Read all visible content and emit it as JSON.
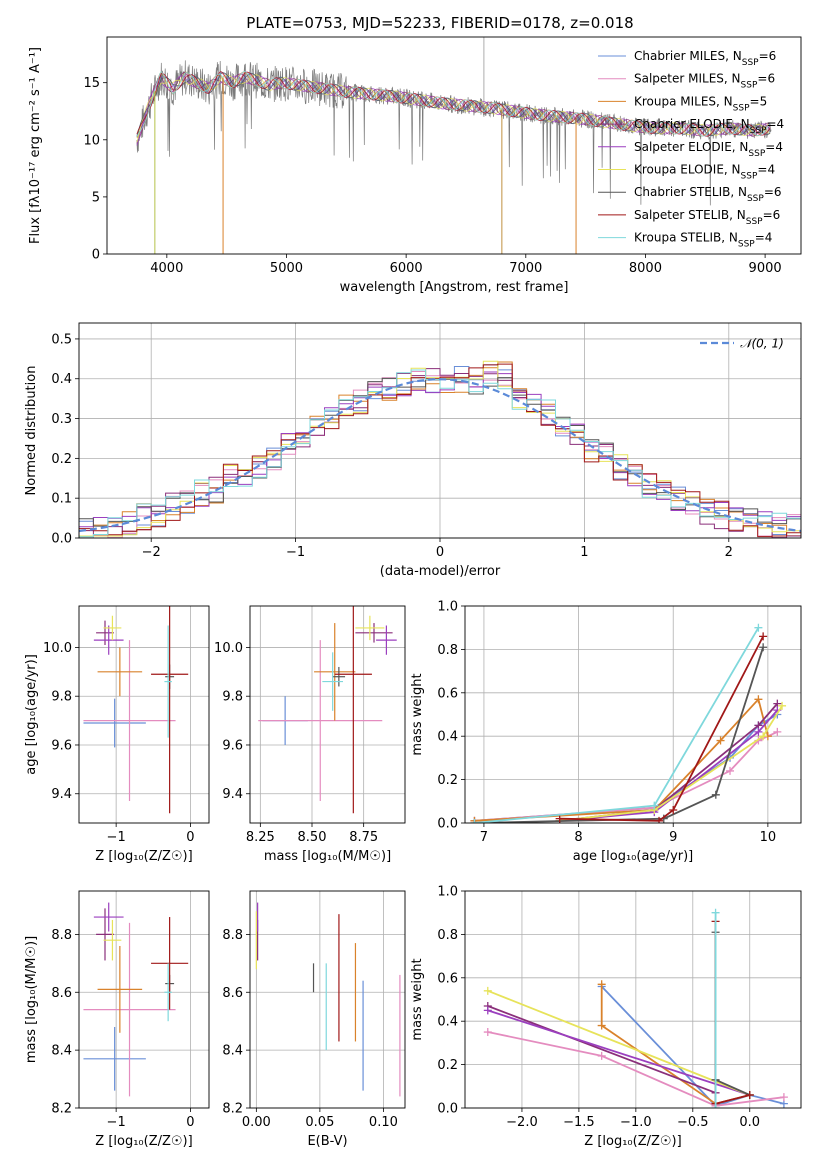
{
  "figure_title": "PLATE=0753, MJD=52233, FIBERID=0178, z=0.018",
  "colors": {
    "Chabrier MILES": "#6a8fd8",
    "Salpeter MILES": "#e48cbf",
    "Kroupa MILES": "#d9822b",
    "Chabrier ELODIE": "#8a2f7a",
    "Salpeter ELODIE": "#9b3fbf",
    "Kroupa ELODIE": "#e7e35a",
    "Chabrier STELIB": "#555555",
    "Salpeter STELIB": "#a01818",
    "Kroupa STELIB": "#7fd8dc"
  },
  "chart_data": [
    {
      "type": "line",
      "xlabel": "wavelength [Angstrom, rest frame]",
      "ylabel": "Flux [fλ10⁻¹⁷ erg cm⁻² s⁻¹ A⁻¹]",
      "xlim": [
        3500,
        9300
      ],
      "ylim": [
        0,
        19
      ],
      "xticks": [
        4000,
        5000,
        6000,
        7000,
        8000,
        9000
      ],
      "yticks": [
        0,
        5,
        10,
        15
      ],
      "grid": false,
      "legend_position": "top-right",
      "legend": [
        "Chabrier MILES, N_SSP=6",
        "Salpeter MILES, N_SSP=6",
        "Kroupa MILES, N_SSP=5",
        "Chabrier ELODIE, N_SSP=4",
        "Salpeter ELODIE, N_SSP=4",
        "Kroupa ELODIE, N_SSP=4",
        "Chabrier STELIB, N_SSP=6",
        "Salpeter STELIB, N_SSP=6",
        "Kroupa STELIB, N_SSP=4"
      ],
      "spectrum_approx": {
        "x": [
          3750,
          3850,
          3950,
          4050,
          4150,
          4250,
          4350,
          4450,
          4550,
          4650,
          4750,
          4850,
          4950,
          5100,
          5300,
          5500,
          5700,
          5900,
          6100,
          6300,
          6500,
          6700,
          6900,
          7100,
          7300,
          7500,
          7700,
          7900,
          8100,
          8300,
          8500,
          8700,
          8900,
          9050
        ],
        "y": [
          10,
          13,
          15.5,
          14.5,
          15.5,
          15,
          14.5,
          15.5,
          15,
          15.5,
          15.2,
          14.8,
          15,
          14.8,
          14.5,
          14.2,
          14,
          13.8,
          13.5,
          13.2,
          13,
          12.8,
          12.5,
          12.2,
          12,
          11.8,
          11.5,
          11.2,
          11,
          11,
          10.8,
          11,
          10.8,
          11
        ]
      }
    },
    {
      "type": "line",
      "xlabel": "(data-model)/error",
      "ylabel": "Normed distribution",
      "xlim": [
        -2.5,
        2.5
      ],
      "ylim": [
        0,
        0.54
      ],
      "xticks": [
        -2,
        -1,
        0,
        1,
        2
      ],
      "yticks": [
        0.0,
        0.1,
        0.2,
        0.3,
        0.4,
        0.5
      ],
      "grid": true,
      "legend_position": "top-right",
      "legend": [
        "𝒩(0, 1)"
      ],
      "histogram_approx": {
        "bin_centers": [
          -2.4,
          -2.2,
          -2.0,
          -1.8,
          -1.6,
          -1.4,
          -1.2,
          -1.0,
          -0.8,
          -0.6,
          -0.4,
          -0.2,
          0.0,
          0.2,
          0.35,
          0.5,
          0.7,
          0.9,
          1.1,
          1.3,
          1.5,
          1.7,
          1.9,
          2.1,
          2.3
        ],
        "values": [
          0.02,
          0.03,
          0.06,
          0.09,
          0.13,
          0.18,
          0.2,
          0.26,
          0.3,
          0.35,
          0.38,
          0.4,
          0.4,
          0.4,
          0.45,
          0.36,
          0.32,
          0.27,
          0.2,
          0.16,
          0.11,
          0.08,
          0.05,
          0.04,
          0.03
        ]
      }
    },
    {
      "type": "scatter",
      "xlabel": "Z [log₁₀(Z/Z☉)]",
      "ylabel": "age  [log₁₀(age/yr)]",
      "xlim": [
        -1.5,
        0.25
      ],
      "ylim": [
        9.28,
        10.17
      ],
      "xticks": [
        -1,
        0
      ],
      "yticks": [
        9.4,
        9.6,
        9.8,
        10.0
      ],
      "grid": true,
      "points": [
        {
          "series": "Chabrier MILES",
          "x": -1.02,
          "y": 9.69,
          "xerr": 0.42,
          "yerr": 0.1
        },
        {
          "series": "Salpeter MILES",
          "x": -0.82,
          "y": 9.7,
          "xerr": 0.62,
          "yerr": 0.33
        },
        {
          "series": "Kroupa MILES",
          "x": -0.95,
          "y": 9.9,
          "xerr": 0.3,
          "yerr": 0.1
        },
        {
          "series": "Chabrier ELODIE",
          "x": -1.15,
          "y": 10.06,
          "xerr": 0.12,
          "yerr": 0.05
        },
        {
          "series": "Salpeter ELODIE",
          "x": -1.1,
          "y": 10.03,
          "xerr": 0.2,
          "yerr": 0.06
        },
        {
          "series": "Kroupa ELODIE",
          "x": -1.05,
          "y": 10.08,
          "xerr": 0.12,
          "yerr": 0.05
        },
        {
          "series": "Chabrier STELIB",
          "x": -0.28,
          "y": 9.88,
          "xerr": 0.06,
          "yerr": 0.05
        },
        {
          "series": "Salpeter STELIB",
          "x": -0.28,
          "y": 9.89,
          "xerr": 0.25,
          "yerr": 0.57
        },
        {
          "series": "Kroupa STELIB",
          "x": -0.3,
          "y": 9.86,
          "xerr": 0.05,
          "yerr": 0.23
        }
      ]
    },
    {
      "type": "scatter",
      "xlabel": "mass [log₁₀(M/M☉)]",
      "ylabel": "",
      "xlim": [
        8.2,
        8.95
      ],
      "ylim": [
        9.28,
        10.17
      ],
      "xticks": [
        8.25,
        8.5,
        8.75
      ],
      "tick_labels": [
        "8.25",
        "8.50",
        "8.75"
      ],
      "yticks": [
        9.4,
        9.6,
        9.8,
        10.0
      ],
      "grid": true,
      "points": [
        {
          "series": "Chabrier MILES",
          "x": 8.37,
          "y": 9.7,
          "xerr": 0.11,
          "yerr": 0.1
        },
        {
          "series": "Salpeter MILES",
          "x": 8.54,
          "y": 9.7,
          "xerr": 0.3,
          "yerr": 0.33
        },
        {
          "series": "Kroupa MILES",
          "x": 8.61,
          "y": 9.9,
          "xerr": 0.1,
          "yerr": 0.2
        },
        {
          "series": "Chabrier ELODIE",
          "x": 8.8,
          "y": 10.06,
          "xerr": 0.09,
          "yerr": 0.04
        },
        {
          "series": "Salpeter ELODIE",
          "x": 8.86,
          "y": 10.03,
          "xerr": 0.05,
          "yerr": 0.06
        },
        {
          "series": "Kroupa ELODIE",
          "x": 8.78,
          "y": 10.08,
          "xerr": 0.07,
          "yerr": 0.05
        },
        {
          "series": "Chabrier STELIB",
          "x": 8.63,
          "y": 9.88,
          "xerr": 0.03,
          "yerr": 0.04
        },
        {
          "series": "Salpeter STELIB",
          "x": 8.7,
          "y": 9.89,
          "xerr": 0.09,
          "yerr": 0.57
        },
        {
          "series": "Kroupa STELIB",
          "x": 8.6,
          "y": 9.86,
          "xerr": 0.05,
          "yerr": 0.12
        }
      ]
    },
    {
      "type": "line",
      "xlabel": "age  [log₁₀(age/yr)]",
      "ylabel": "mass weight",
      "xlim": [
        6.8,
        10.35
      ],
      "ylim": [
        0,
        1.0
      ],
      "xticks": [
        7,
        8,
        9,
        10
      ],
      "yticks": [
        0.0,
        0.2,
        0.4,
        0.6,
        0.8,
        1.0
      ],
      "grid": true,
      "series": [
        {
          "series": "Chabrier MILES",
          "x": [
            6.9,
            8.8,
            9.6,
            9.9,
            10.1
          ],
          "y": [
            0.01,
            0.07,
            0.3,
            0.45,
            0.5
          ]
        },
        {
          "series": "Salpeter MILES",
          "x": [
            6.9,
            8.8,
            9.6,
            9.9,
            10.1
          ],
          "y": [
            0.01,
            0.07,
            0.24,
            0.38,
            0.42
          ]
        },
        {
          "series": "Kroupa MILES",
          "x": [
            6.9,
            8.8,
            9.5,
            9.9,
            10.0
          ],
          "y": [
            0.01,
            0.06,
            0.38,
            0.57,
            0.4
          ]
        },
        {
          "series": "Chabrier ELODIE",
          "x": [
            7.8,
            8.8,
            9.9,
            10.1
          ],
          "y": [
            0.01,
            0.06,
            0.45,
            0.55
          ]
        },
        {
          "series": "Salpeter ELODIE",
          "x": [
            7.8,
            8.8,
            9.9,
            10.1
          ],
          "y": [
            0.01,
            0.05,
            0.42,
            0.52
          ]
        },
        {
          "series": "Kroupa ELODIE",
          "x": [
            7.8,
            8.8,
            9.95,
            10.15
          ],
          "y": [
            0.01,
            0.06,
            0.4,
            0.54
          ]
        },
        {
          "series": "Chabrier STELIB",
          "x": [
            6.9,
            8.9,
            9.45,
            9.95
          ],
          "y": [
            0.0,
            0.02,
            0.13,
            0.81
          ]
        },
        {
          "series": "Salpeter STELIB",
          "x": [
            7.8,
            8.85,
            9.0,
            9.95
          ],
          "y": [
            0.02,
            0.01,
            0.06,
            0.86
          ]
        },
        {
          "series": "Kroupa STELIB",
          "x": [
            6.9,
            8.8,
            9.9
          ],
          "y": [
            0.0,
            0.08,
            0.9
          ]
        }
      ]
    },
    {
      "type": "scatter",
      "xlabel": "Z [log₁₀(Z/Z☉)]",
      "ylabel": "mass [log₁₀(M/M☉)]",
      "xlim": [
        -1.5,
        0.25
      ],
      "ylim": [
        8.2,
        8.95
      ],
      "xticks": [
        -1,
        0
      ],
      "yticks": [
        8.2,
        8.4,
        8.6,
        8.8
      ],
      "grid": true,
      "points": [
        {
          "series": "Chabrier MILES",
          "x": -1.02,
          "y": 8.37,
          "xerr": 0.42,
          "yerr": 0.11
        },
        {
          "series": "Salpeter MILES",
          "x": -0.82,
          "y": 8.54,
          "xerr": 0.62,
          "yerr": 0.3
        },
        {
          "series": "Kroupa MILES",
          "x": -0.95,
          "y": 8.61,
          "xerr": 0.3,
          "yerr": 0.15
        },
        {
          "series": "Chabrier ELODIE",
          "x": -1.15,
          "y": 8.8,
          "xerr": 0.12,
          "yerr": 0.09
        },
        {
          "series": "Salpeter ELODIE",
          "x": -1.1,
          "y": 8.86,
          "xerr": 0.2,
          "yerr": 0.05
        },
        {
          "series": "Kroupa ELODIE",
          "x": -1.05,
          "y": 8.78,
          "xerr": 0.12,
          "yerr": 0.07
        },
        {
          "series": "Chabrier STELIB",
          "x": -0.28,
          "y": 8.63,
          "xerr": 0.06,
          "yerr": 0.03
        },
        {
          "series": "Salpeter STELIB",
          "x": -0.28,
          "y": 8.7,
          "xerr": 0.25,
          "yerr": 0.16
        },
        {
          "series": "Kroupa STELIB",
          "x": -0.3,
          "y": 8.6,
          "xerr": 0.05,
          "yerr": 0.1
        }
      ]
    },
    {
      "type": "scatter",
      "xlabel": "E(B-V)",
      "ylabel": "",
      "xlim": [
        -0.005,
        0.117
      ],
      "ylim": [
        8.2,
        8.95
      ],
      "xticks": [
        0.0,
        0.05,
        0.1
      ],
      "tick_labels": [
        "0.00",
        "0.05",
        "0.10"
      ],
      "yticks": [
        8.2,
        8.4,
        8.6,
        8.8
      ],
      "grid": true,
      "points": [
        {
          "series": "Chabrier MILES",
          "x": 0.084,
          "y": 8.45,
          "yerr": 0.19
        },
        {
          "series": "Salpeter MILES",
          "x": 0.113,
          "y": 8.45,
          "yerr": 0.21
        },
        {
          "series": "Kroupa MILES",
          "x": 0.078,
          "y": 8.6,
          "yerr": 0.17
        },
        {
          "series": "Chabrier ELODIE",
          "x": 0.001,
          "y": 8.78,
          "yerr": 0.07
        },
        {
          "series": "Salpeter ELODIE",
          "x": 0.001,
          "y": 8.86,
          "yerr": 0.05
        },
        {
          "series": "Kroupa ELODIE",
          "x": 0.0,
          "y": 8.78,
          "yerr": 0.1
        },
        {
          "series": "Chabrier STELIB",
          "x": 0.045,
          "y": 8.65,
          "yerr": 0.05
        },
        {
          "series": "Salpeter STELIB",
          "x": 0.065,
          "y": 8.65,
          "yerr": 0.22
        },
        {
          "series": "Kroupa STELIB",
          "x": 0.055,
          "y": 8.55,
          "yerr": 0.15
        }
      ]
    },
    {
      "type": "line",
      "xlabel": "Z [log₁₀(Z/Z☉)]",
      "ylabel": "mass weight",
      "xlim": [
        -2.5,
        0.45
      ],
      "ylim": [
        0,
        1.0
      ],
      "xticks": [
        -2.0,
        -1.5,
        -1.0,
        -0.5,
        0.0
      ],
      "tick_labels": [
        "−2.0",
        "−1.5",
        "−1.0",
        "−0.5",
        "0.0"
      ],
      "yticks": [
        0.0,
        0.2,
        0.4,
        0.6,
        0.8,
        1.0
      ],
      "grid": true,
      "series": [
        {
          "series": "Chabrier MILES",
          "x": [
            -1.3,
            -0.3,
            0.0,
            0.3
          ],
          "y": [
            0.56,
            0.01,
            0.06,
            0.02
          ]
        },
        {
          "series": "Salpeter MILES",
          "x": [
            -2.3,
            -1.3,
            -0.3,
            0.3
          ],
          "y": [
            0.35,
            0.24,
            0.01,
            0.05
          ]
        },
        {
          "series": "Kroupa MILES",
          "x": [
            -1.3,
            -1.3,
            -0.3,
            0.0
          ],
          "y": [
            0.57,
            0.38,
            0.02,
            0.06
          ]
        },
        {
          "series": "Chabrier ELODIE",
          "x": [
            -2.3,
            -0.3
          ],
          "y": [
            0.47,
            0.07
          ]
        },
        {
          "series": "Salpeter ELODIE",
          "x": [
            -2.3,
            0.0
          ],
          "y": [
            0.45,
            0.06
          ]
        },
        {
          "series": "Kroupa ELODIE",
          "x": [
            -2.3,
            0.0
          ],
          "y": [
            0.54,
            0.06
          ]
        },
        {
          "series": "Chabrier STELIB",
          "x": [
            -0.3,
            -0.3,
            0.0
          ],
          "y": [
            0.81,
            0.13,
            0.06
          ]
        },
        {
          "series": "Salpeter STELIB",
          "x": [
            -0.3,
            -0.3,
            0.0
          ],
          "y": [
            0.86,
            0.02,
            0.06
          ]
        },
        {
          "series": "Kroupa STELIB",
          "x": [
            -0.3,
            -0.3
          ],
          "y": [
            0.9,
            0.0
          ]
        }
      ]
    }
  ]
}
